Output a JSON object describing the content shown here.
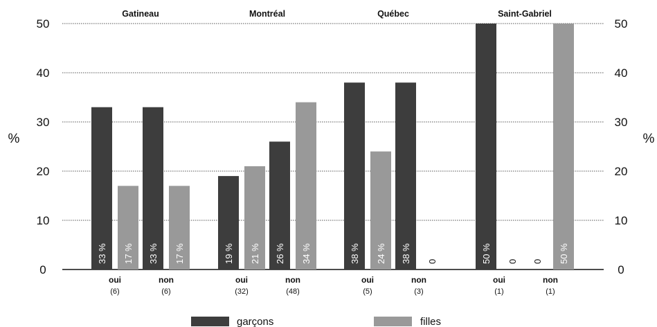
{
  "chart_data": {
    "type": "bar",
    "ylabel_left": "%",
    "ylabel_right": "%",
    "ylim": [
      0,
      50
    ],
    "yticks": [
      0,
      10,
      20,
      30,
      40,
      50
    ],
    "grid": true,
    "legend_placement": "bottom",
    "colors": {
      "garcons": "#3d3d3d",
      "filles": "#999999"
    },
    "groups": [
      {
        "name": "Gatineau",
        "categories": [
          {
            "label": "oui",
            "count": "(6)",
            "garcons": 33,
            "filles": 17,
            "garcons_label": "33 %",
            "filles_label": "17 %"
          },
          {
            "label": "non",
            "count": "(6)",
            "garcons": 33,
            "filles": 17,
            "garcons_label": "33 %",
            "filles_label": "17 %"
          }
        ]
      },
      {
        "name": "Montréal",
        "categories": [
          {
            "label": "oui",
            "count": "(32)",
            "garcons": 19,
            "filles": 21,
            "garcons_label": "19 %",
            "filles_label": "21 %"
          },
          {
            "label": "non",
            "count": "(48)",
            "garcons": 26,
            "filles": 34,
            "garcons_label": "26 %",
            "filles_label": "34 %"
          }
        ]
      },
      {
        "name": "Québec",
        "categories": [
          {
            "label": "oui",
            "count": "(5)",
            "garcons": 38,
            "filles": 24,
            "garcons_label": "38 %",
            "filles_label": "24 %"
          },
          {
            "label": "non",
            "count": "(3)",
            "garcons": 38,
            "filles": 0,
            "garcons_label": "38 %",
            "filles_label": "0"
          }
        ]
      },
      {
        "name": "Saint-Gabriel",
        "categories": [
          {
            "label": "oui",
            "count": "(1)",
            "garcons": 50,
            "filles": 0,
            "garcons_label": "50 %",
            "filles_label": "0"
          },
          {
            "label": "non",
            "count": "(1)",
            "garcons": 0,
            "filles": 50,
            "garcons_label": "0",
            "filles_label": "50 %"
          }
        ]
      }
    ],
    "legend": [
      {
        "key": "garcons",
        "label": "garçons"
      },
      {
        "key": "filles",
        "label": "filles"
      }
    ]
  }
}
